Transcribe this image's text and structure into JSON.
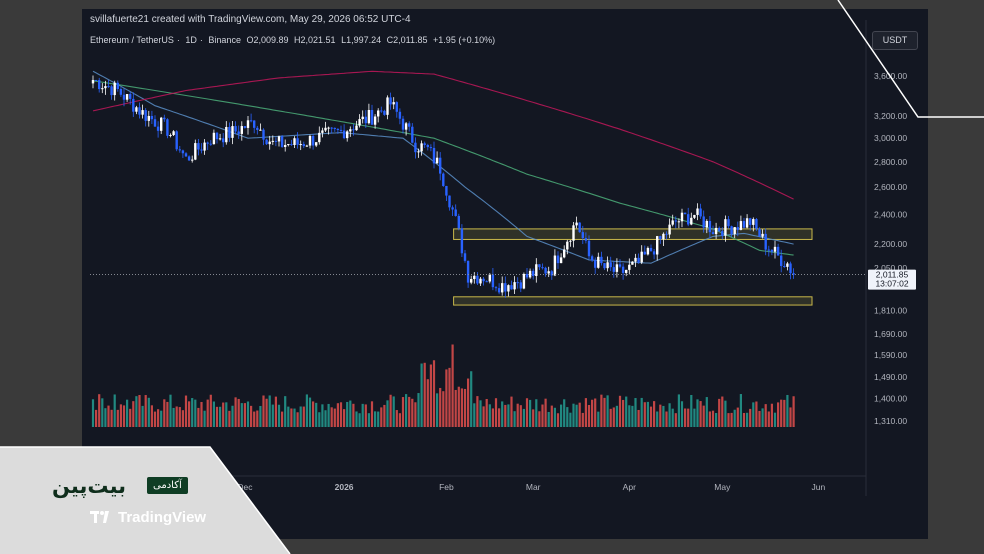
{
  "caption": "svillafuerte21 created with TradingView.com, May 29, 2026 06:52 UTC-4",
  "symbol": {
    "name": "Ethereum / TetherUS",
    "interval": "1D",
    "exchange": "Binance",
    "open": "O2,009.89",
    "high": "H2,021.51",
    "low": "L1,997.24",
    "close": "C2,011.85",
    "change": "+1.95 (+0.10%)"
  },
  "currency": "USDT",
  "price_label": {
    "price": "2,011.85",
    "countdown": "13:07:02"
  },
  "logo": {
    "brand": "بیت‌پین",
    "tag": "آکادمی",
    "platform": "TradingView"
  },
  "colors": {
    "bg": "#131722",
    "up": "#ffffff",
    "down": "#2962ff",
    "vol_up": "#26a69a",
    "vol_down": "#ef5350",
    "ma_fast": "#5b8fc9",
    "ma_mid": "#4caf7a",
    "ma_slow": "#c2185b",
    "zone": "#c9b84a"
  },
  "chart_data": {
    "type": "candlestick",
    "scale": "log",
    "y_ticks": [
      "3,600.00",
      "3,200.00",
      "3,000.00",
      "2,800.00",
      "2,600.00",
      "2,400.00",
      "2,200.00",
      "2,050.00",
      "1,810.00",
      "1,690.00",
      "1,590.00",
      "1,490.00",
      "1,400.00",
      "1,310.00"
    ],
    "y_tick_values": [
      3600,
      3200,
      3000,
      2800,
      2600,
      2400,
      2200,
      2050,
      1810,
      1690,
      1590,
      1490,
      1400,
      1310
    ],
    "x_ticks": [
      "Dec",
      "2026",
      "Feb",
      "Mar",
      "Apr",
      "May",
      "Jun"
    ],
    "x_tick_index": [
      49,
      81,
      114,
      142,
      173,
      203,
      234
    ],
    "close_key_points": [
      [
        0,
        3560
      ],
      [
        8,
        3450
      ],
      [
        16,
        3230
      ],
      [
        24,
        3080
      ],
      [
        30,
        2820
      ],
      [
        38,
        3000
      ],
      [
        45,
        3050
      ],
      [
        52,
        3150
      ],
      [
        58,
        2950
      ],
      [
        66,
        2950
      ],
      [
        72,
        3000
      ],
      [
        80,
        3060
      ],
      [
        90,
        3200
      ],
      [
        96,
        3320
      ],
      [
        104,
        2950
      ],
      [
        108,
        2900
      ],
      [
        112,
        2750
      ],
      [
        117,
        2350
      ],
      [
        121,
        2010
      ],
      [
        126,
        2000
      ],
      [
        132,
        1950
      ],
      [
        138,
        1980
      ],
      [
        143,
        2030
      ],
      [
        148,
        2050
      ],
      [
        152,
        2200
      ],
      [
        156,
        2350
      ],
      [
        160,
        2120
      ],
      [
        165,
        2050
      ],
      [
        170,
        2020
      ],
      [
        176,
        2080
      ],
      [
        182,
        2200
      ],
      [
        188,
        2350
      ],
      [
        194,
        2400
      ],
      [
        200,
        2300
      ],
      [
        206,
        2320
      ],
      [
        212,
        2350
      ],
      [
        217,
        2200
      ],
      [
        221,
        2120
      ],
      [
        224,
        2080
      ],
      [
        226,
        2011.85
      ]
    ],
    "candle_count": 227,
    "last_close": 2011.85,
    "moving_averages": [
      {
        "color": "ma_fast",
        "key_points": [
          [
            0,
            3650
          ],
          [
            20,
            3300
          ],
          [
            50,
            3000
          ],
          [
            80,
            3050
          ],
          [
            100,
            3000
          ],
          [
            120,
            2600
          ],
          [
            140,
            2250
          ],
          [
            160,
            2100
          ],
          [
            180,
            2080
          ],
          [
            200,
            2250
          ],
          [
            210,
            2270
          ],
          [
            226,
            2200
          ]
        ]
      },
      {
        "color": "ma_mid",
        "key_points": [
          [
            0,
            3550
          ],
          [
            40,
            3350
          ],
          [
            80,
            3150
          ],
          [
            110,
            3000
          ],
          [
            140,
            2700
          ],
          [
            170,
            2480
          ],
          [
            200,
            2300
          ],
          [
            215,
            2160
          ],
          [
            226,
            2130
          ]
        ]
      },
      {
        "color": "ma_slow",
        "key_points": [
          [
            0,
            3250
          ],
          [
            30,
            3450
          ],
          [
            60,
            3580
          ],
          [
            90,
            3650
          ],
          [
            110,
            3620
          ],
          [
            140,
            3350
          ],
          [
            170,
            3080
          ],
          [
            200,
            2800
          ],
          [
            226,
            2510
          ]
        ]
      }
    ],
    "zones": [
      {
        "from_index": 116,
        "to_index": 240,
        "top": 2300,
        "bottom": 2230
      },
      {
        "from_index": 116,
        "to_index": 240,
        "top": 1885,
        "bottom": 1840
      }
    ],
    "volume_note": "volume bars in lower pane, spike near Feb"
  }
}
